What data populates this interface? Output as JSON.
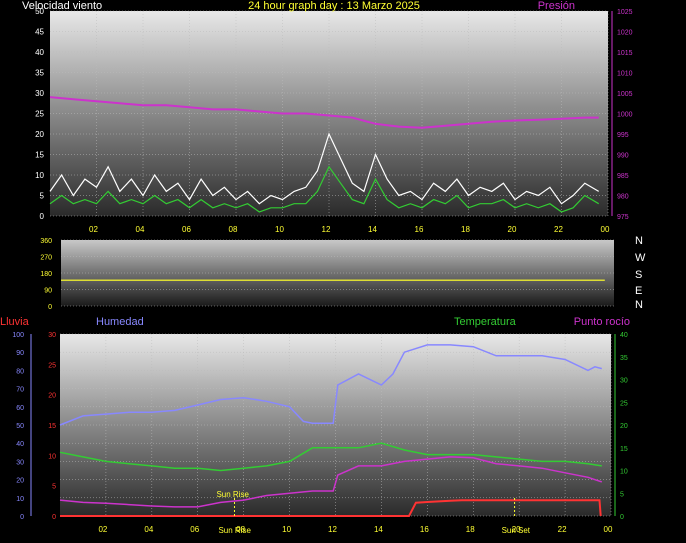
{
  "header": {
    "left_label": "Velocidad viento",
    "title": "24 hour graph day : 13 Marzo 2025",
    "right_label": "Presión"
  },
  "bottom_header": {
    "rain": "Lluvia",
    "humidity": "Humedad",
    "temperature": "Temperatura",
    "dewpoint": "Punto rocío"
  },
  "colors": {
    "pressure": "#cc33cc",
    "wind_avg": "#33cc33",
    "wind_gust": "#ffffff",
    "direction": "#dddd33",
    "rain": "#ff3333",
    "humidity": "#8888ff",
    "temperature": "#33cc33",
    "dewpoint": "#cc33cc",
    "sun": "#cccc33"
  },
  "chart_data": [
    {
      "type": "line",
      "name": "wind_pressure",
      "x_ticks": [
        "02",
        "04",
        "06",
        "08",
        "10",
        "12",
        "14",
        "16",
        "18",
        "20",
        "22",
        "00"
      ],
      "x_range": [
        0,
        24
      ],
      "left_axis": {
        "ticks": [
          "0",
          "5",
          "10",
          "15",
          "20",
          "25",
          "30",
          "35",
          "40",
          "45",
          "50"
        ],
        "range": [
          0,
          50
        ]
      },
      "right_axis": {
        "ticks": [
          "975",
          "980",
          "985",
          "990",
          "995",
          "1000",
          "1005",
          "1010",
          "1015",
          "1020",
          "1025"
        ],
        "range": [
          975,
          1025
        ]
      },
      "series": [
        {
          "key": "pressure",
          "axis": "right",
          "points": [
            [
              0,
              1004
            ],
            [
              1,
              1003.5
            ],
            [
              2,
              1003
            ],
            [
              3,
              1002.5
            ],
            [
              4,
              1002
            ],
            [
              5,
              1002
            ],
            [
              6,
              1001.5
            ],
            [
              7,
              1001
            ],
            [
              8,
              1001
            ],
            [
              9,
              1000.5
            ],
            [
              10,
              1000
            ],
            [
              11,
              1000
            ],
            [
              12,
              999.5
            ],
            [
              13,
              999
            ],
            [
              14,
              997.5
            ],
            [
              15,
              996.8
            ],
            [
              16,
              996.5
            ],
            [
              17,
              997
            ],
            [
              18,
              997.5
            ],
            [
              19,
              998
            ],
            [
              20,
              998.3
            ],
            [
              21,
              998.5
            ],
            [
              22,
              998.7
            ],
            [
              23,
              999
            ],
            [
              23.6,
              999
            ]
          ]
        },
        {
          "key": "wind_gust",
          "axis": "left",
          "points": [
            [
              0,
              6
            ],
            [
              0.5,
              10
            ],
            [
              1,
              5
            ],
            [
              1.5,
              9
            ],
            [
              2,
              7
            ],
            [
              2.5,
              12
            ],
            [
              3,
              6
            ],
            [
              3.5,
              9
            ],
            [
              4,
              5
            ],
            [
              4.5,
              10
            ],
            [
              5,
              6
            ],
            [
              5.5,
              8
            ],
            [
              6,
              4
            ],
            [
              6.5,
              9
            ],
            [
              7,
              5
            ],
            [
              7.5,
              7
            ],
            [
              8,
              4
            ],
            [
              8.5,
              6
            ],
            [
              9,
              3
            ],
            [
              9.5,
              5
            ],
            [
              10,
              4
            ],
            [
              10.5,
              6
            ],
            [
              11,
              7
            ],
            [
              11.5,
              11
            ],
            [
              12,
              20
            ],
            [
              12.5,
              14
            ],
            [
              13,
              8
            ],
            [
              13.5,
              6
            ],
            [
              14,
              15
            ],
            [
              14.5,
              9
            ],
            [
              15,
              5
            ],
            [
              15.5,
              6
            ],
            [
              16,
              4
            ],
            [
              16.5,
              8
            ],
            [
              17,
              6
            ],
            [
              17.5,
              9
            ],
            [
              18,
              5
            ],
            [
              18.5,
              7
            ],
            [
              19,
              6
            ],
            [
              19.5,
              8
            ],
            [
              20,
              4
            ],
            [
              20.5,
              6
            ],
            [
              21,
              5
            ],
            [
              21.5,
              7
            ],
            [
              22,
              3
            ],
            [
              22.5,
              5
            ],
            [
              23,
              8
            ],
            [
              23.6,
              6
            ]
          ]
        },
        {
          "key": "wind_avg",
          "axis": "left",
          "points": [
            [
              0,
              3
            ],
            [
              0.5,
              5
            ],
            [
              1,
              3
            ],
            [
              1.5,
              4
            ],
            [
              2,
              3
            ],
            [
              2.5,
              6
            ],
            [
              3,
              3
            ],
            [
              3.5,
              4
            ],
            [
              4,
              3
            ],
            [
              4.5,
              5
            ],
            [
              5,
              3
            ],
            [
              5.5,
              4
            ],
            [
              6,
              2
            ],
            [
              6.5,
              4
            ],
            [
              7,
              2
            ],
            [
              7.5,
              3
            ],
            [
              8,
              2
            ],
            [
              8.5,
              3
            ],
            [
              9,
              1
            ],
            [
              9.5,
              2
            ],
            [
              10,
              2
            ],
            [
              10.5,
              3
            ],
            [
              11,
              3
            ],
            [
              11.5,
              6
            ],
            [
              12,
              12
            ],
            [
              12.5,
              8
            ],
            [
              13,
              4
            ],
            [
              13.5,
              3
            ],
            [
              14,
              9
            ],
            [
              14.5,
              4
            ],
            [
              15,
              2
            ],
            [
              15.5,
              3
            ],
            [
              16,
              2
            ],
            [
              16.5,
              4
            ],
            [
              17,
              3
            ],
            [
              17.5,
              5
            ],
            [
              18,
              2
            ],
            [
              18.5,
              3
            ],
            [
              19,
              3
            ],
            [
              19.5,
              4
            ],
            [
              20,
              2
            ],
            [
              20.5,
              3
            ],
            [
              21,
              2
            ],
            [
              21.5,
              3
            ],
            [
              22,
              1
            ],
            [
              22.5,
              2
            ],
            [
              23,
              5
            ],
            [
              23.6,
              3
            ]
          ]
        }
      ]
    },
    {
      "type": "line",
      "name": "wind_direction",
      "y_ticks": [
        "0",
        "90",
        "180",
        "270",
        "360"
      ],
      "y_range": [
        0,
        360
      ],
      "compass_labels": [
        "N",
        "W",
        "S",
        "E",
        "N"
      ],
      "series": [
        {
          "key": "direction",
          "points": [
            [
              0,
              140
            ],
            [
              23.6,
              140
            ]
          ]
        }
      ]
    },
    {
      "type": "line",
      "name": "temp_humidity",
      "x_ticks": [
        "02",
        "04",
        "06",
        "08",
        "10",
        "12",
        "14",
        "16",
        "18",
        "20",
        "22",
        "00"
      ],
      "x_range": [
        0,
        24
      ],
      "humidity_axis": {
        "ticks": [
          "0",
          "10",
          "20",
          "30",
          "40",
          "50",
          "60",
          "70",
          "80",
          "90",
          "100"
        ],
        "range": [
          0,
          100
        ]
      },
      "rain_axis": {
        "ticks": [
          "0",
          "5",
          "10",
          "15",
          "20",
          "25",
          "30"
        ],
        "range": [
          0,
          30
        ]
      },
      "temp_axis": {
        "ticks": [
          "0",
          "5",
          "10",
          "15",
          "20",
          "25",
          "30",
          "35",
          "40"
        ],
        "range": [
          0,
          40
        ]
      },
      "sunrise_label": "Sun Rise",
      "sunset_label": "Sun Set",
      "sunrise_hour": 7.6,
      "sunset_hour": 19.8,
      "series": [
        {
          "key": "humidity",
          "axis": "humidity",
          "points": [
            [
              0,
              50
            ],
            [
              1,
              55
            ],
            [
              2,
              56
            ],
            [
              3,
              57
            ],
            [
              4,
              57
            ],
            [
              5,
              58
            ],
            [
              6,
              61
            ],
            [
              7,
              64
            ],
            [
              8,
              65
            ],
            [
              9,
              63
            ],
            [
              10,
              60
            ],
            [
              10.6,
              52
            ],
            [
              11,
              51
            ],
            [
              11.9,
              51
            ],
            [
              12.1,
              72
            ],
            [
              13,
              78
            ],
            [
              14,
              72
            ],
            [
              14.5,
              78
            ],
            [
              15,
              90
            ],
            [
              16,
              94
            ],
            [
              17,
              94
            ],
            [
              18,
              93
            ],
            [
              19,
              88
            ],
            [
              20,
              88
            ],
            [
              21,
              88
            ],
            [
              22,
              86
            ],
            [
              23,
              80
            ],
            [
              23.3,
              82
            ],
            [
              23.6,
              81
            ]
          ]
        },
        {
          "key": "temperature",
          "axis": "temp",
          "points": [
            [
              0,
              14
            ],
            [
              1,
              13
            ],
            [
              2,
              12
            ],
            [
              3,
              11.5
            ],
            [
              4,
              11
            ],
            [
              5,
              10.5
            ],
            [
              6,
              10.5
            ],
            [
              7,
              10
            ],
            [
              8,
              10.5
            ],
            [
              9,
              11
            ],
            [
              10,
              12
            ],
            [
              11,
              15
            ],
            [
              12,
              15
            ],
            [
              13,
              15
            ],
            [
              14,
              16
            ],
            [
              15,
              14.5
            ],
            [
              16,
              13.5
            ],
            [
              17,
              13.5
            ],
            [
              18,
              13.5
            ],
            [
              19,
              13
            ],
            [
              20,
              12.5
            ],
            [
              21,
              12
            ],
            [
              22,
              12
            ],
            [
              23,
              11.5
            ],
            [
              23.6,
              11
            ]
          ]
        },
        {
          "key": "dewpoint",
          "axis": "temp",
          "points": [
            [
              0,
              3.5
            ],
            [
              1,
              3
            ],
            [
              2,
              2.8
            ],
            [
              3,
              2.5
            ],
            [
              4,
              2.2
            ],
            [
              5,
              2
            ],
            [
              6,
              2
            ],
            [
              7,
              3
            ],
            [
              8,
              3.5
            ],
            [
              9,
              4.5
            ],
            [
              10,
              5
            ],
            [
              11,
              5.5
            ],
            [
              11.9,
              5.5
            ],
            [
              12.1,
              9
            ],
            [
              13,
              11
            ],
            [
              14,
              11
            ],
            [
              15,
              12
            ],
            [
              16,
              12.5
            ],
            [
              17,
              13
            ],
            [
              18,
              12.8
            ],
            [
              19,
              11.5
            ],
            [
              20,
              11
            ],
            [
              21,
              10.5
            ],
            [
              22,
              9.5
            ],
            [
              23,
              8.5
            ],
            [
              23.6,
              7.5
            ]
          ]
        },
        {
          "key": "rain",
          "axis": "rain",
          "points": [
            [
              0,
              0
            ],
            [
              15.2,
              0
            ],
            [
              15.5,
              2.2
            ],
            [
              16,
              2.3
            ],
            [
              17,
              2.5
            ],
            [
              17.5,
              2.6
            ],
            [
              18,
              2.6
            ],
            [
              23.5,
              2.6
            ],
            [
              23.55,
              0
            ]
          ]
        }
      ]
    }
  ]
}
